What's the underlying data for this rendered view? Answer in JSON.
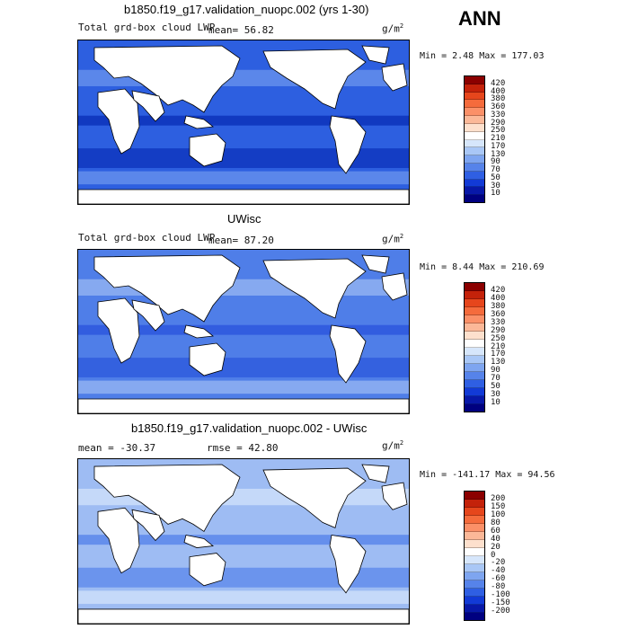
{
  "season": "ANN",
  "units": "g/m",
  "units_exp": "2",
  "panels": [
    {
      "title": "b1850.f19_g17.validation_nuopc.002 (yrs 1-30)",
      "variable": "Total grd-box cloud LWP",
      "stat_text": "mean=  56.82",
      "minmax": "Min =    2.48 Max = 177.03",
      "levels": [
        "420",
        "400",
        "380",
        "360",
        "330",
        "290",
        "250",
        "210",
        "170",
        "130",
        "90",
        "70",
        "50",
        "30",
        "10"
      ],
      "colors": [
        "#8b0000",
        "#c4220a",
        "#e6461c",
        "#f56b3c",
        "#fb9068",
        "#fbb898",
        "#fde0cd",
        "#ffffff",
        "#d6e6fb",
        "#a9c7f6",
        "#7ea5f0",
        "#5683ea",
        "#2f5fe3",
        "#123ad6",
        "#0818a8",
        "#000080"
      ],
      "ocean": "#2d5fe0",
      "deep": "#0a2fb8",
      "light": "#6f98ee"
    },
    {
      "title": "UWisc",
      "variable": "Total grd-box cloud LWP",
      "stat_text": "mean=  87.20",
      "minmax": "Min =    8.44 Max = 210.69",
      "levels": [
        "420",
        "400",
        "380",
        "360",
        "330",
        "290",
        "250",
        "210",
        "170",
        "130",
        "90",
        "70",
        "50",
        "30",
        "10"
      ],
      "colors": [
        "#8b0000",
        "#c4220a",
        "#e6461c",
        "#f56b3c",
        "#fb9068",
        "#fbb898",
        "#fde0cd",
        "#ffffff",
        "#d6e6fb",
        "#a9c7f6",
        "#7ea5f0",
        "#5683ea",
        "#2f5fe3",
        "#123ad6",
        "#0818a8",
        "#000080"
      ],
      "ocean": "#4f7ee8",
      "deep": "#2a55dc",
      "light": "#9ebcf3"
    },
    {
      "title": "b1850.f19_g17.validation_nuopc.002 - UWisc",
      "mean_text": "mean = -30.37",
      "rmse_text": "rmse =  42.80",
      "minmax": "Min = -141.17 Max =  94.56",
      "levels": [
        "200",
        "150",
        "100",
        "80",
        "60",
        "40",
        "20",
        "0",
        "-20",
        "-40",
        "-60",
        "-80",
        "-100",
        "-150",
        "-200"
      ],
      "colors": [
        "#8b0000",
        "#c4220a",
        "#e6461c",
        "#f56b3c",
        "#fb9068",
        "#fbb898",
        "#fde0cd",
        "#ffffff",
        "#d6e6fb",
        "#a9c7f6",
        "#7ea5f0",
        "#5683ea",
        "#2f5fe3",
        "#123ad6",
        "#0818a8",
        "#000080"
      ],
      "ocean": "#9ebcf3",
      "deep": "#5683ea",
      "light": "#d6e6fb"
    }
  ]
}
